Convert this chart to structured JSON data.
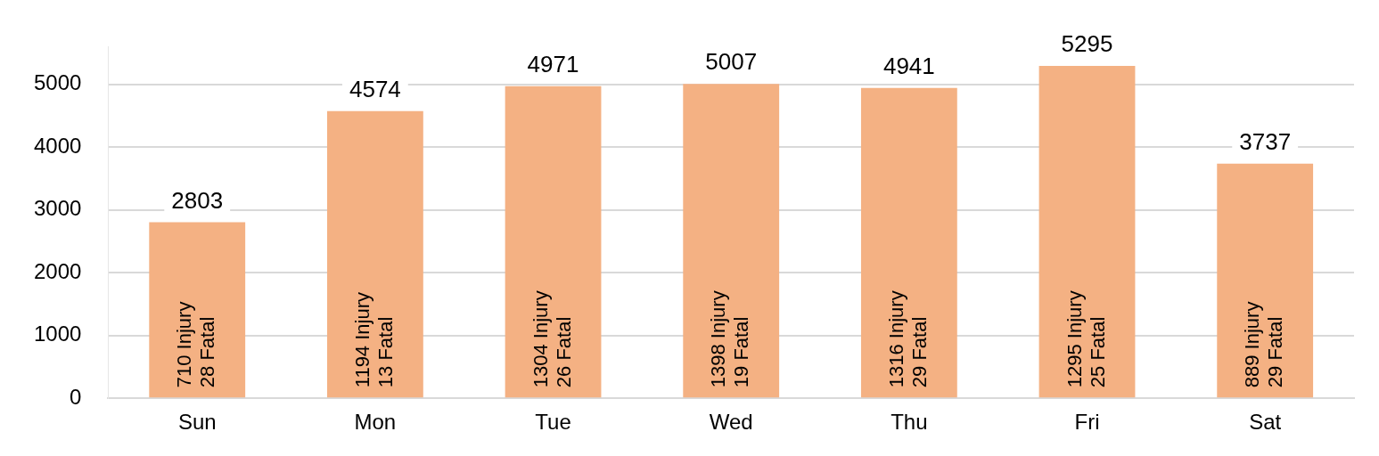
{
  "chart_data": {
    "type": "bar",
    "categories": [
      "Sun",
      "Mon",
      "Tue",
      "Wed",
      "Thu",
      "Fri",
      "Sat"
    ],
    "values": [
      2803,
      4574,
      4971,
      5007,
      4941,
      5295,
      3737
    ],
    "color": "#f4b183",
    "ylim": [
      0,
      5600
    ],
    "yticks": [
      0,
      1000,
      2000,
      3000,
      4000,
      5000
    ],
    "grid": "y",
    "legend": false,
    "data_labels": true,
    "annotations": [
      "710 Injury\n28 Fatal",
      "1194 Injury\n13 Fatal",
      "1304 Injury\n26 Fatal",
      "1398 Injury\n19 Fatal",
      "1316 Injury\n29 Fatal",
      "1295 Injury\n25 Fatal",
      "889 Injury\n29 Fatal"
    ]
  }
}
